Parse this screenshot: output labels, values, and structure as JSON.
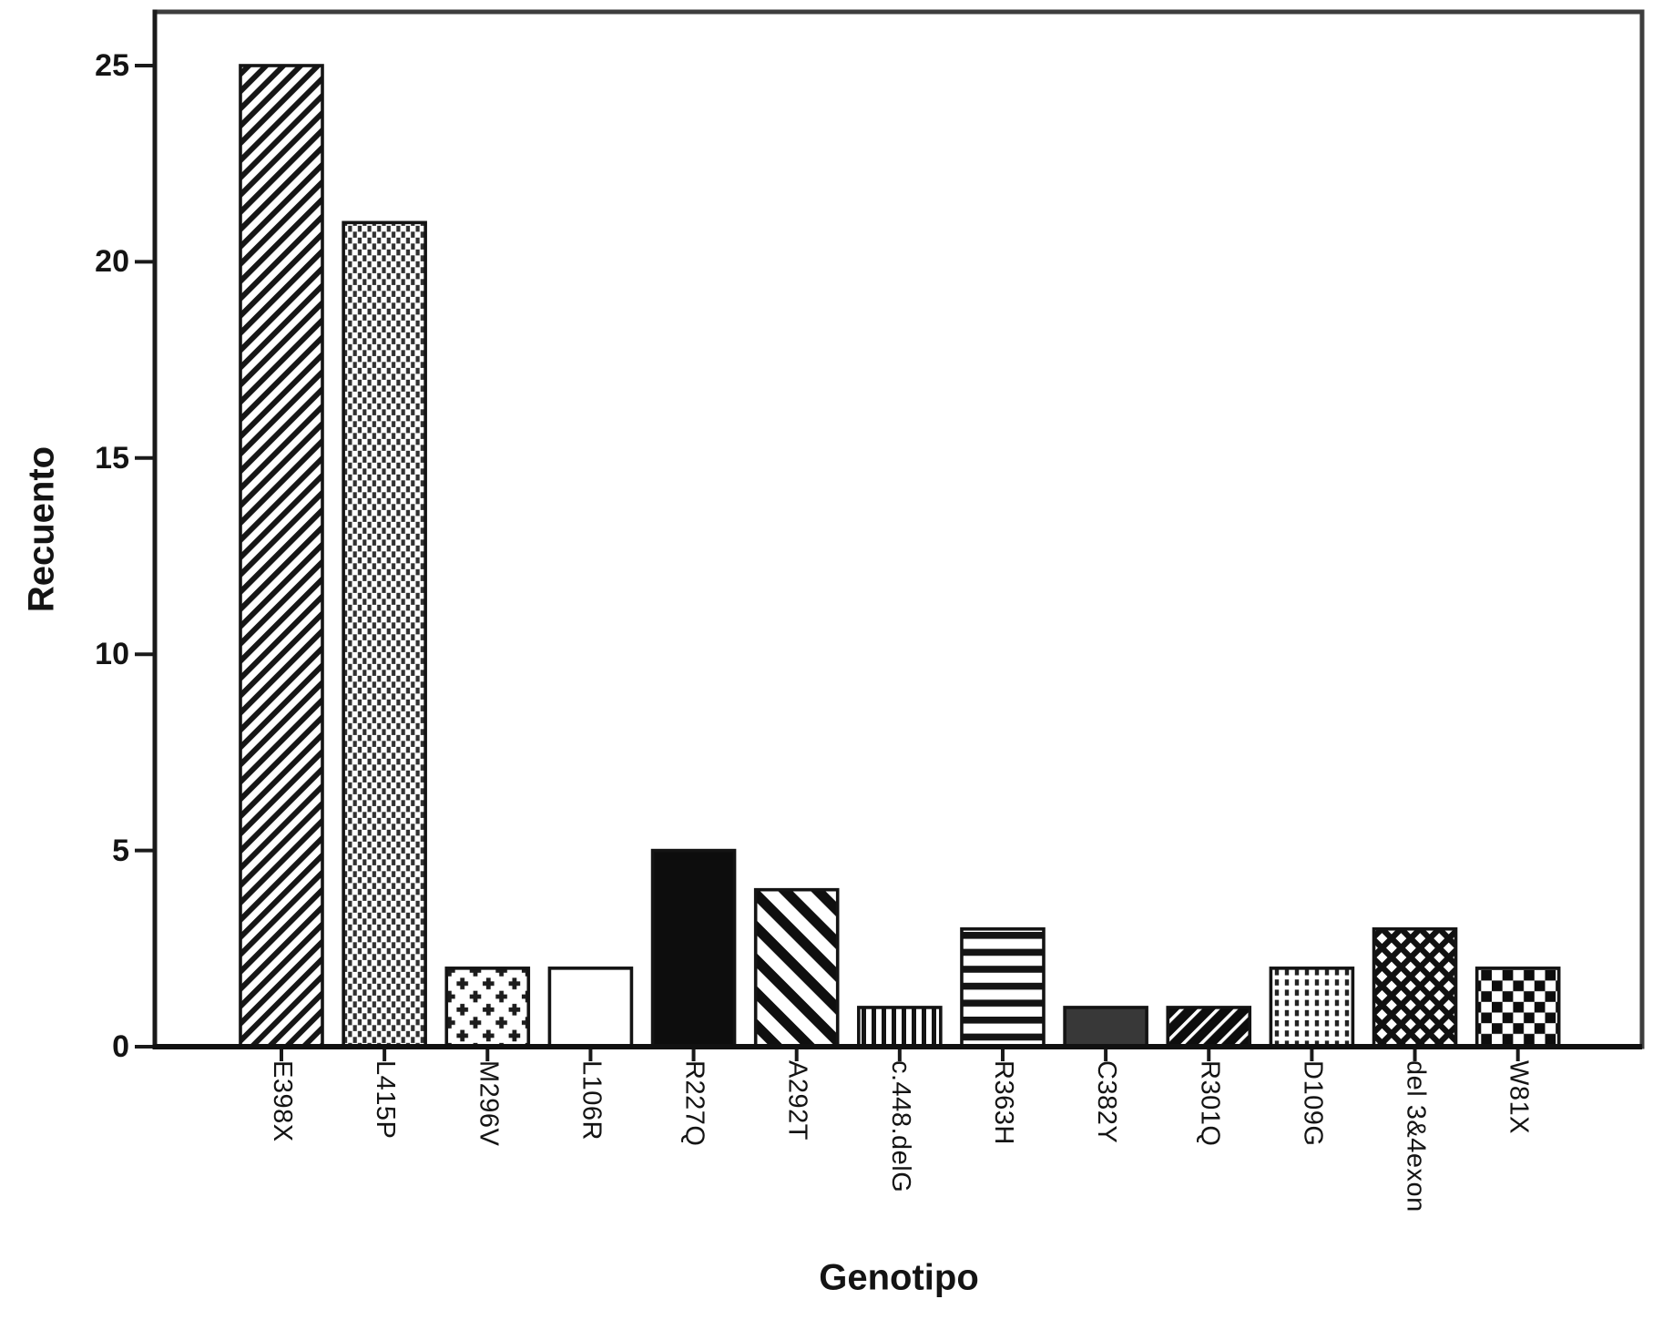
{
  "figure": {
    "y_axis_title": "Recuento",
    "x_axis_title": "Genotipo"
  },
  "chart_data": {
    "type": "bar",
    "title": "",
    "xlabel": "Genotipo",
    "ylabel": "Recuento",
    "categories": [
      "E398X",
      "L415P",
      "M296V",
      "L106R",
      "R227Q",
      "A292T",
      "c.448.delG",
      "R363H",
      "C382Y",
      "R301Q",
      "D109G",
      "del 3&4exon",
      "W81X"
    ],
    "values": [
      25,
      21,
      2,
      2,
      5,
      4,
      1,
      3,
      1,
      1,
      2,
      3,
      2
    ],
    "bar_patterns": [
      "diagonal-forward-hatch",
      "fine-dot-grid",
      "plus-signs",
      "plain-white",
      "solid-black",
      "bold-back-diagonal-stripes",
      "vertical-lines",
      "horizontal-lines",
      "solid-dark-gray",
      "black-with-thin-white-diagonals",
      "vertical-dashed-lines",
      "diagonal-lattice",
      "checkerboard"
    ],
    "y_ticks": [
      0,
      5,
      10,
      15,
      20,
      25
    ],
    "ylim": [
      0,
      26.4
    ],
    "grid": false,
    "legend": "none",
    "colors": {
      "ink": "#141414",
      "frame": "#3d3d3d",
      "solid_black_bar": "#0d0d0d",
      "dark_gray_bar": "#383838",
      "background": "#ffffff"
    }
  }
}
